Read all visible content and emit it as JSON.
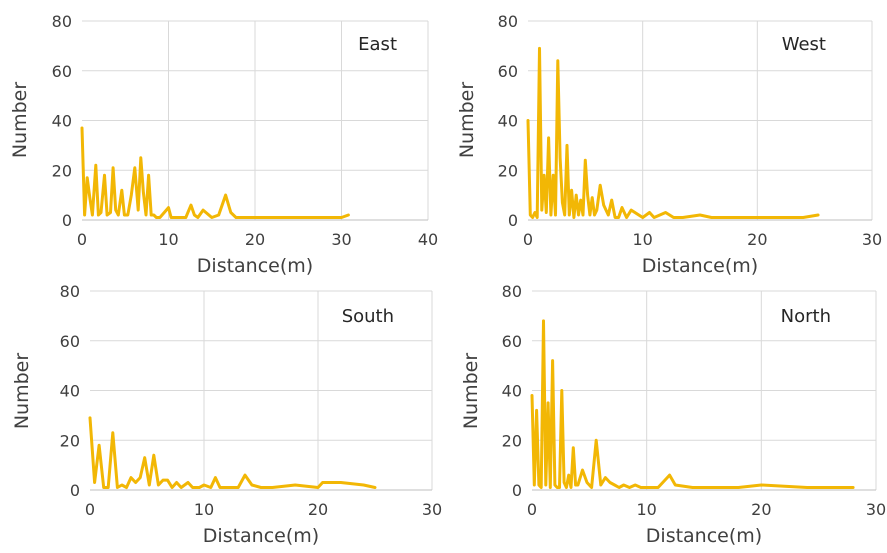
{
  "chart_data": [
    {
      "type": "line",
      "title": "East",
      "xlabel": "Distance(m)",
      "ylabel": "Number",
      "xlim": [
        0,
        40
      ],
      "ylim": [
        0,
        80
      ],
      "xticks": [
        0,
        10,
        20,
        30,
        40
      ],
      "yticks": [
        0,
        20,
        40,
        60,
        80
      ],
      "grid": true,
      "color": "#F2B705",
      "x": [
        0,
        0.3,
        0.6,
        0.9,
        1.2,
        1.6,
        1.9,
        2.2,
        2.6,
        2.9,
        3.3,
        3.6,
        3.9,
        4.2,
        4.6,
        4.9,
        5.3,
        5.7,
        6.1,
        6.5,
        6.8,
        7.1,
        7.4,
        7.7,
        8,
        8.3,
        8.6,
        9,
        10,
        10.3,
        10.6,
        11,
        12,
        12.6,
        13,
        13.4,
        14,
        15,
        15.8,
        16.6,
        17.2,
        17.8,
        18.5,
        20,
        25,
        30,
        30.8
      ],
      "y": [
        37,
        2,
        17,
        9,
        2,
        22,
        2,
        3,
        18,
        2,
        3,
        21,
        4,
        2,
        12,
        2,
        2,
        10,
        21,
        4,
        25,
        11,
        2,
        18,
        2,
        2,
        1,
        1,
        5,
        1,
        1,
        1,
        1,
        6,
        2,
        1,
        4,
        1,
        2,
        10,
        3,
        1,
        1,
        1,
        1,
        1,
        2
      ]
    },
    {
      "type": "line",
      "title": "West",
      "xlabel": "Distance(m)",
      "ylabel": "Number",
      "xlim": [
        0,
        30
      ],
      "ylim": [
        0,
        80
      ],
      "xticks": [
        0,
        10,
        20,
        30
      ],
      "yticks": [
        0,
        20,
        40,
        60,
        80
      ],
      "grid": true,
      "color": "#F2B705",
      "x": [
        0,
        0.2,
        0.4,
        0.6,
        0.8,
        1.0,
        1.2,
        1.4,
        1.6,
        1.8,
        2.0,
        2.2,
        2.4,
        2.6,
        2.8,
        3.0,
        3.2,
        3.4,
        3.6,
        3.8,
        4.0,
        4.2,
        4.4,
        4.6,
        4.8,
        5.0,
        5.2,
        5.4,
        5.6,
        5.8,
        6.0,
        6.3,
        6.6,
        7.0,
        7.3,
        7.6,
        7.9,
        8.2,
        8.6,
        9,
        10,
        10.6,
        11,
        12,
        12.7,
        13.5,
        15,
        16,
        17,
        18,
        20,
        22,
        24,
        25.3
      ],
      "y": [
        40,
        2,
        1,
        3,
        1,
        69,
        4,
        18,
        3,
        33,
        2,
        18,
        2,
        64,
        25,
        7,
        2,
        30,
        2,
        12,
        1,
        10,
        2,
        8,
        2,
        24,
        10,
        2,
        9,
        2,
        4,
        14,
        6,
        2,
        8,
        1,
        1,
        5,
        1,
        4,
        1,
        3,
        1,
        3,
        1,
        1,
        2,
        1,
        1,
        1,
        1,
        1,
        1,
        2
      ]
    },
    {
      "type": "line",
      "title": "South",
      "xlabel": "Distance(m)",
      "ylabel": "Number",
      "xlim": [
        0,
        30
      ],
      "ylim": [
        0,
        80
      ],
      "xticks": [
        0,
        10,
        20,
        30
      ],
      "yticks": [
        0,
        20,
        40,
        60,
        80
      ],
      "grid": true,
      "color": "#F2B705",
      "x": [
        0,
        0.4,
        0.8,
        1.2,
        1.6,
        2.0,
        2.4,
        2.8,
        3.2,
        3.6,
        4.0,
        4.4,
        4.8,
        5.2,
        5.6,
        6.0,
        6.4,
        6.8,
        7.2,
        7.6,
        8.0,
        8.6,
        9.0,
        9.6,
        10.0,
        10.6,
        11.0,
        11.4,
        12,
        13,
        13.6,
        14.2,
        15,
        16,
        18,
        20,
        20.4,
        21,
        22,
        24,
        25
      ],
      "y": [
        29,
        3,
        18,
        1,
        1,
        23,
        1,
        2,
        1,
        5,
        3,
        5,
        13,
        2,
        14,
        2,
        4,
        4,
        1,
        3,
        1,
        3,
        1,
        1,
        2,
        1,
        5,
        1,
        1,
        1,
        6,
        2,
        1,
        1,
        2,
        1,
        3,
        3,
        3,
        2,
        1
      ]
    },
    {
      "type": "line",
      "title": "North",
      "xlabel": "Distance(m)",
      "ylabel": "Number",
      "xlim": [
        0,
        30
      ],
      "ylim": [
        0,
        80
      ],
      "xticks": [
        0,
        10,
        20,
        30
      ],
      "yticks": [
        0,
        20,
        40,
        60,
        80
      ],
      "grid": true,
      "color": "#F2B705",
      "x": [
        0,
        0.2,
        0.4,
        0.6,
        0.8,
        1.0,
        1.2,
        1.4,
        1.6,
        1.8,
        2.0,
        2.2,
        2.4,
        2.6,
        2.8,
        3.0,
        3.2,
        3.4,
        3.6,
        3.8,
        4.0,
        4.4,
        4.8,
        5.2,
        5.6,
        6.0,
        6.4,
        6.8,
        7.2,
        7.6,
        8.0,
        8.5,
        9.0,
        9.5,
        10,
        11,
        12,
        12.5,
        14,
        16,
        18,
        20,
        24,
        28
      ],
      "y": [
        38,
        2,
        32,
        2,
        1,
        68,
        2,
        35,
        1,
        52,
        2,
        1,
        1,
        40,
        3,
        1,
        6,
        1,
        17,
        2,
        2,
        8,
        3,
        1,
        20,
        2,
        5,
        3,
        2,
        1,
        2,
        1,
        2,
        1,
        1,
        1,
        6,
        2,
        1,
        1,
        1,
        2,
        1,
        1
      ]
    }
  ]
}
